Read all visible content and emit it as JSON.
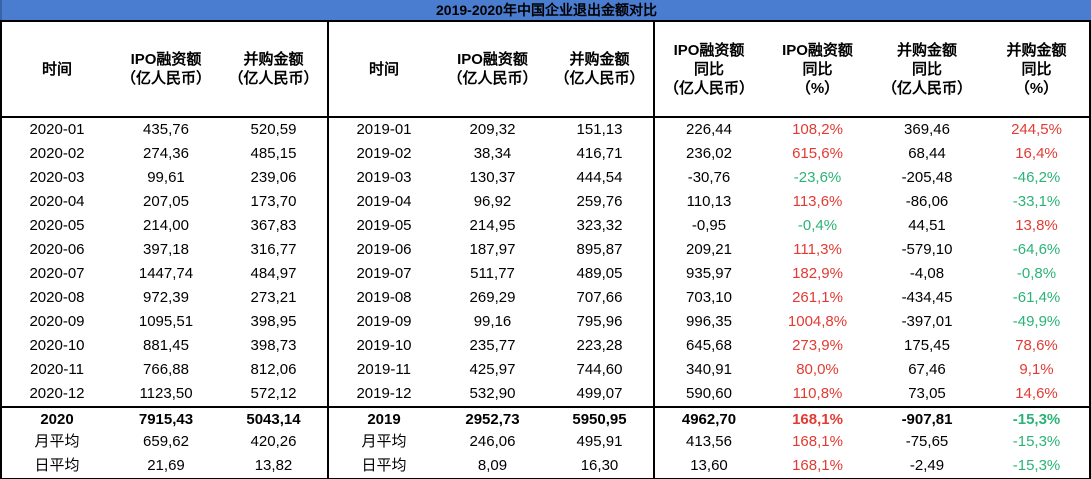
{
  "title": "2019-2020年中国企业退出金额对比",
  "colors": {
    "title_bg": "#4a7cd0",
    "positive_pct": "#e23b33",
    "negative_pct": "#2bb377",
    "border": "#000000"
  },
  "table": {
    "columns": [
      {
        "lines": [
          "时间"
        ]
      },
      {
        "lines": [
          "IPO融资额",
          "（亿人民币）"
        ]
      },
      {
        "lines": [
          "并购金额",
          "（亿人民币）"
        ]
      },
      {
        "lines": [
          "时间"
        ]
      },
      {
        "lines": [
          "IPO融资额",
          "（亿人民币）"
        ]
      },
      {
        "lines": [
          "并购金额",
          "（亿人民币）"
        ]
      },
      {
        "lines": [
          "IPO融资额",
          "同比",
          "（亿人民币）"
        ]
      },
      {
        "lines": [
          "IPO融资额",
          "同比",
          "（%）"
        ]
      },
      {
        "lines": [
          "并购金额",
          "同比",
          "（亿人民币）"
        ]
      },
      {
        "lines": [
          "并购金额",
          "同比",
          "（%）"
        ]
      }
    ],
    "percent_column_indexes": [
      7,
      9
    ],
    "rows": [
      {
        "cells": [
          "2020-01",
          "435,76",
          "520,59",
          "2019-01",
          "209,32",
          "151,13",
          "226,44",
          "108,2%",
          "369,46",
          "244,5%"
        ],
        "bold": false,
        "total": false
      },
      {
        "cells": [
          "2020-02",
          "274,36",
          "485,15",
          "2019-02",
          "38,34",
          "416,71",
          "236,02",
          "615,6%",
          "68,44",
          "16,4%"
        ],
        "bold": false,
        "total": false
      },
      {
        "cells": [
          "2020-03",
          "99,61",
          "239,06",
          "2019-03",
          "130,37",
          "444,54",
          "-30,76",
          "-23,6%",
          "-205,48",
          "-46,2%"
        ],
        "bold": false,
        "total": false
      },
      {
        "cells": [
          "2020-04",
          "207,05",
          "173,70",
          "2019-04",
          "96,92",
          "259,76",
          "110,13",
          "113,6%",
          "-86,06",
          "-33,1%"
        ],
        "bold": false,
        "total": false
      },
      {
        "cells": [
          "2020-05",
          "214,00",
          "367,83",
          "2019-05",
          "214,95",
          "323,32",
          "-0,95",
          "-0,4%",
          "44,51",
          "13,8%"
        ],
        "bold": false,
        "total": false
      },
      {
        "cells": [
          "2020-06",
          "397,18",
          "316,77",
          "2019-06",
          "187,97",
          "895,87",
          "209,21",
          "111,3%",
          "-579,10",
          "-64,6%"
        ],
        "bold": false,
        "total": false
      },
      {
        "cells": [
          "2020-07",
          "1447,74",
          "484,97",
          "2019-07",
          "511,77",
          "489,05",
          "935,97",
          "182,9%",
          "-4,08",
          "-0,8%"
        ],
        "bold": false,
        "total": false
      },
      {
        "cells": [
          "2020-08",
          "972,39",
          "273,21",
          "2019-08",
          "269,29",
          "707,66",
          "703,10",
          "261,1%",
          "-434,45",
          "-61,4%"
        ],
        "bold": false,
        "total": false
      },
      {
        "cells": [
          "2020-09",
          "1095,51",
          "398,95",
          "2019-09",
          "99,16",
          "795,96",
          "996,35",
          "1004,8%",
          "-397,01",
          "-49,9%"
        ],
        "bold": false,
        "total": false
      },
      {
        "cells": [
          "2020-10",
          "881,45",
          "398,73",
          "2019-10",
          "235,77",
          "223,28",
          "645,68",
          "273,9%",
          "175,45",
          "78,6%"
        ],
        "bold": false,
        "total": false
      },
      {
        "cells": [
          "2020-11",
          "766,88",
          "812,06",
          "2019-11",
          "425,97",
          "744,60",
          "340,91",
          "80,0%",
          "67,46",
          "9,1%"
        ],
        "bold": false,
        "total": false
      },
      {
        "cells": [
          "2020-12",
          "1123,50",
          "572,12",
          "2019-12",
          "532,90",
          "499,07",
          "590,60",
          "110,8%",
          "73,05",
          "14,6%"
        ],
        "bold": false,
        "total": false
      },
      {
        "cells": [
          "2020",
          "7915,43",
          "5043,14",
          "2019",
          "2952,73",
          "5950,95",
          "4962,70",
          "168,1%",
          "-907,81",
          "-15,3%"
        ],
        "bold": true,
        "total": true
      },
      {
        "cells": [
          "月平均",
          "659,62",
          "420,26",
          "月平均",
          "246,06",
          "495,91",
          "413,56",
          "168,1%",
          "-75,65",
          "-15,3%"
        ],
        "bold": false,
        "total": false
      },
      {
        "cells": [
          "日平均",
          "21,69",
          "13,82",
          "日平均",
          "8,09",
          "16,30",
          "13,60",
          "168,1%",
          "-2,49",
          "-15,3%"
        ],
        "bold": false,
        "total": false
      }
    ]
  }
}
